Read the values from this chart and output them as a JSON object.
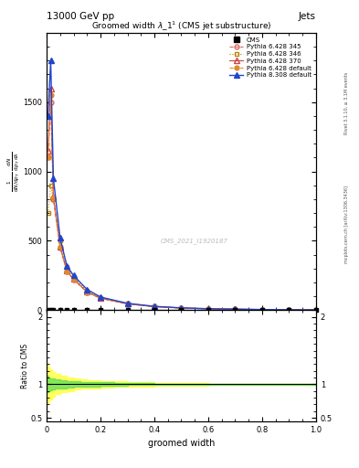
{
  "title_top": "13000 GeV pp",
  "title_right": "Jets",
  "plot_title": "Groomed width $\\lambda$_1$^1$ (CMS jet substructure)",
  "xlabel": "groomed width",
  "ylabel_ratio": "Ratio to CMS",
  "watermark": "CMS_2021_I1920187",
  "rivet_text": "Rivet 3.1.10, ≥ 3.1M events",
  "arxiv_text": "mcplots.cern.ch [arXiv:1306.3436]",
  "x_data": [
    0.005,
    0.015,
    0.025,
    0.05,
    0.075,
    0.1,
    0.15,
    0.2,
    0.3,
    0.4,
    0.5,
    0.6,
    0.7,
    0.8,
    0.9,
    1.0
  ],
  "cms_y": [
    0.5,
    0.5,
    0.5,
    0.5,
    0.5,
    0.5,
    0.5,
    0.5,
    0.5,
    0.5,
    0.5,
    0.5,
    0.5,
    0.5,
    0.5,
    0.5
  ],
  "py6_345_y": [
    1100,
    1500,
    800,
    450,
    280,
    220,
    130,
    85,
    45,
    25,
    15,
    10,
    7,
    5,
    3,
    2
  ],
  "py6_345_color": "#dd6666",
  "py6_345_ls": "--",
  "py6_345_label": "Pythia 6.428 345",
  "py6_346_y": [
    700,
    900,
    800,
    500,
    310,
    240,
    140,
    90,
    48,
    26,
    16,
    11,
    7,
    5,
    3,
    2
  ],
  "py6_346_color": "#b8860b",
  "py6_346_ls": ":",
  "py6_346_label": "Pythia 6.428 346",
  "py6_370_y": [
    1150,
    1600,
    820,
    460,
    285,
    225,
    132,
    87,
    46,
    26,
    16,
    10,
    7,
    5,
    3,
    2
  ],
  "py6_370_color": "#cc4444",
  "py6_370_ls": "-",
  "py6_370_label": "Pythia 6.428 370",
  "py6_def_y": [
    1100,
    1550,
    810,
    455,
    282,
    222,
    131,
    86,
    46,
    26,
    16,
    10,
    7,
    5,
    3,
    2
  ],
  "py6_def_color": "#e08830",
  "py6_def_ls": "--",
  "py6_def_label": "Pythia 6.428 default",
  "py8_def_y": [
    1400,
    1800,
    950,
    520,
    320,
    250,
    150,
    95,
    50,
    28,
    17,
    11,
    8,
    5,
    3,
    2
  ],
  "py8_def_color": "#2244cc",
  "py8_def_ls": "-",
  "py8_def_label": "Pythia 8.308 default",
  "xlim": [
    0,
    1.0
  ],
  "ylim_main": [
    0,
    2000
  ],
  "yticks_main": [
    0,
    500,
    1000,
    1500
  ],
  "ylim_ratio": [
    0.45,
    2.1
  ],
  "ratio_x": [
    0.0,
    0.005,
    0.01,
    0.02,
    0.03,
    0.05,
    0.075,
    0.1,
    0.125,
    0.15,
    0.2,
    0.25,
    0.3,
    0.4,
    0.5,
    0.6,
    0.7,
    0.8,
    0.9,
    1.0
  ],
  "ratio_yellow_low": [
    0.7,
    0.75,
    0.78,
    0.82,
    0.85,
    0.88,
    0.9,
    0.92,
    0.93,
    0.94,
    0.95,
    0.96,
    0.97,
    0.98,
    0.98,
    0.99,
    0.99,
    0.99,
    0.99,
    0.99
  ],
  "ratio_yellow_high": [
    1.3,
    1.25,
    1.22,
    1.18,
    1.15,
    1.12,
    1.1,
    1.08,
    1.07,
    1.06,
    1.05,
    1.04,
    1.03,
    1.02,
    1.02,
    1.01,
    1.01,
    1.01,
    1.01,
    1.01
  ],
  "ratio_green_low": [
    0.88,
    0.9,
    0.91,
    0.92,
    0.93,
    0.94,
    0.95,
    0.96,
    0.965,
    0.97,
    0.975,
    0.98,
    0.985,
    0.99,
    0.99,
    0.995,
    0.995,
    0.995,
    0.995,
    0.995
  ],
  "ratio_green_high": [
    1.12,
    1.1,
    1.09,
    1.08,
    1.07,
    1.06,
    1.05,
    1.04,
    1.035,
    1.03,
    1.025,
    1.02,
    1.015,
    1.01,
    1.01,
    1.005,
    1.005,
    1.005,
    1.005,
    1.005
  ]
}
